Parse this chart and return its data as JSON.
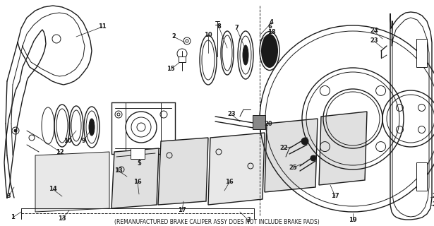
{
  "caption": "(REMANUFACTURED BRAKE CALIPER ASSY DOES NOT INCLUDE BRAKE PADS)",
  "bg_color": "#ffffff",
  "line_color": "#1a1a1a",
  "figsize": [
    6.15,
    3.2
  ],
  "dpi": 100
}
